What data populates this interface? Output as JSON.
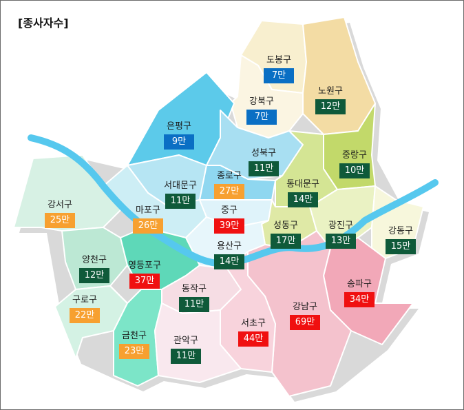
{
  "title": "[종사자수]",
  "colors": {
    "green": "#0f5a3a",
    "blue": "#0a6fc4",
    "red": "#f01010",
    "orange": "#f7a030",
    "river": "#56c8ee"
  },
  "districts": [
    {
      "key": "dobong",
      "name": "도봉구",
      "value": "7만",
      "tier": "blue"
    },
    {
      "key": "nowon",
      "name": "노원구",
      "value": "12만",
      "tier": "green"
    },
    {
      "key": "gangbuk",
      "name": "강북구",
      "value": "7만",
      "tier": "blue"
    },
    {
      "key": "eunpyeong",
      "name": "은평구",
      "value": "9만",
      "tier": "blue"
    },
    {
      "key": "seongbuk",
      "name": "성북구",
      "value": "11만",
      "tier": "green"
    },
    {
      "key": "jungnang",
      "name": "중랑구",
      "value": "10만",
      "tier": "green"
    },
    {
      "key": "seodaemun",
      "name": "서대문구",
      "value": "11만",
      "tier": "green"
    },
    {
      "key": "jongno",
      "name": "종로구",
      "value": "27만",
      "tier": "orange"
    },
    {
      "key": "dongdaemun",
      "name": "동대문구",
      "value": "14만",
      "tier": "green"
    },
    {
      "key": "gangseo",
      "name": "강서구",
      "value": "25만",
      "tier": "orange"
    },
    {
      "key": "mapo",
      "name": "마포구",
      "value": "26만",
      "tier": "orange"
    },
    {
      "key": "jung",
      "name": "중구",
      "value": "39만",
      "tier": "red"
    },
    {
      "key": "seongdong",
      "name": "성동구",
      "value": "17만",
      "tier": "green"
    },
    {
      "key": "gwangjin",
      "name": "광진구",
      "value": "13만",
      "tier": "green"
    },
    {
      "key": "gangdong",
      "name": "강동구",
      "value": "15만",
      "tier": "green"
    },
    {
      "key": "yongsan",
      "name": "용산구",
      "value": "14만",
      "tier": "green"
    },
    {
      "key": "yangcheon",
      "name": "양천구",
      "value": "12만",
      "tier": "green"
    },
    {
      "key": "yeongdeungpo",
      "name": "영등포구",
      "value": "37만",
      "tier": "red"
    },
    {
      "key": "songpa",
      "name": "송파구",
      "value": "34만",
      "tier": "red"
    },
    {
      "key": "guro",
      "name": "구로구",
      "value": "22만",
      "tier": "orange"
    },
    {
      "key": "dongjak",
      "name": "동작구",
      "value": "11만",
      "tier": "green"
    },
    {
      "key": "gangnam",
      "name": "강남구",
      "value": "69만",
      "tier": "red"
    },
    {
      "key": "seocho",
      "name": "서초구",
      "value": "44만",
      "tier": "red"
    },
    {
      "key": "geumcheon",
      "name": "금천구",
      "value": "23만",
      "tier": "orange"
    },
    {
      "key": "gwanak",
      "name": "관악구",
      "value": "11만",
      "tier": "green"
    }
  ]
}
